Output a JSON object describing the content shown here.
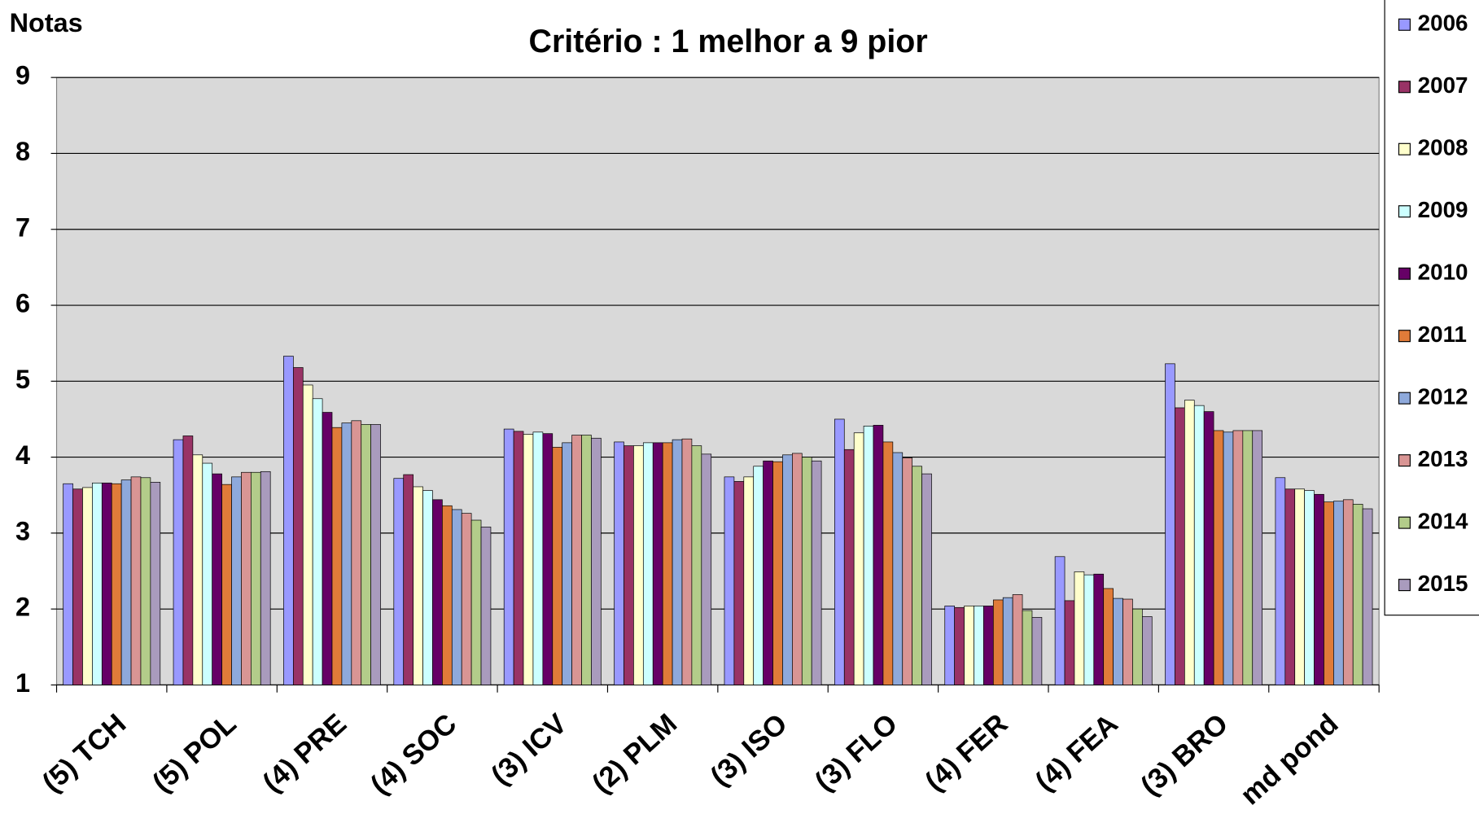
{
  "chart_data": {
    "type": "bar",
    "title": "Critério : 1 melhor a 9 pior",
    "y_label": "Notas",
    "categories": [
      "(5)  TCH",
      "(5)  POL",
      "(4)  PRE",
      "(4)  SOC",
      "(3)  ICV",
      "(2)  PLM",
      "(3)  ISO",
      "(3)  FLO",
      "(4)  FER",
      "(4)  FEA",
      "(3)  BRO",
      "md pond"
    ],
    "series": [
      {
        "name": "2006",
        "color": "#9999ff",
        "values": [
          3.65,
          4.23,
          5.33,
          3.72,
          4.37,
          4.2,
          3.74,
          4.5,
          2.04,
          2.69,
          5.23,
          3.73
        ]
      },
      {
        "name": "2007",
        "color": "#993366",
        "values": [
          3.58,
          4.28,
          5.18,
          3.77,
          4.34,
          4.15,
          3.68,
          4.1,
          2.02,
          2.11,
          4.65,
          3.58
        ]
      },
      {
        "name": "2008",
        "color": "#ffffcc",
        "values": [
          3.6,
          4.03,
          4.95,
          3.61,
          4.3,
          4.15,
          3.74,
          4.32,
          2.04,
          2.49,
          4.75,
          3.58
        ]
      },
      {
        "name": "2009",
        "color": "#ccffff",
        "values": [
          3.66,
          3.92,
          4.77,
          3.56,
          4.33,
          4.19,
          3.88,
          4.41,
          2.04,
          2.45,
          4.68,
          3.56
        ]
      },
      {
        "name": "2010",
        "color": "#660066",
        "values": [
          3.66,
          3.78,
          4.59,
          3.44,
          4.31,
          4.19,
          3.95,
          4.42,
          2.04,
          2.46,
          4.6,
          3.51
        ]
      },
      {
        "name": "2011",
        "color": "#e07b39",
        "values": [
          3.65,
          3.64,
          4.39,
          3.36,
          4.13,
          4.19,
          3.94,
          4.2,
          2.12,
          2.27,
          4.35,
          3.41
        ]
      },
      {
        "name": "2012",
        "color": "#8ea9db",
        "values": [
          3.7,
          3.74,
          4.45,
          3.31,
          4.19,
          4.23,
          4.03,
          4.06,
          2.15,
          2.14,
          4.33,
          3.42
        ]
      },
      {
        "name": "2013",
        "color": "#d99594",
        "values": [
          3.74,
          3.8,
          4.48,
          3.26,
          4.29,
          4.24,
          4.05,
          3.99,
          2.19,
          2.13,
          4.35,
          3.44
        ]
      },
      {
        "name": "2014",
        "color": "#b3cc8a",
        "values": [
          3.73,
          3.8,
          4.43,
          3.17,
          4.29,
          4.15,
          4.0,
          3.88,
          1.98,
          2.0,
          4.35,
          3.38
        ]
      },
      {
        "name": "2015",
        "color": "#a99bbd",
        "values": [
          3.67,
          3.81,
          4.43,
          3.08,
          4.25,
          4.04,
          3.95,
          3.78,
          1.89,
          1.9,
          4.35,
          3.32
        ]
      }
    ],
    "ylim": [
      1,
      9
    ],
    "yticks": [
      1,
      2,
      3,
      4,
      5,
      6,
      7,
      8,
      9
    ],
    "grid": true,
    "legend": "right"
  }
}
